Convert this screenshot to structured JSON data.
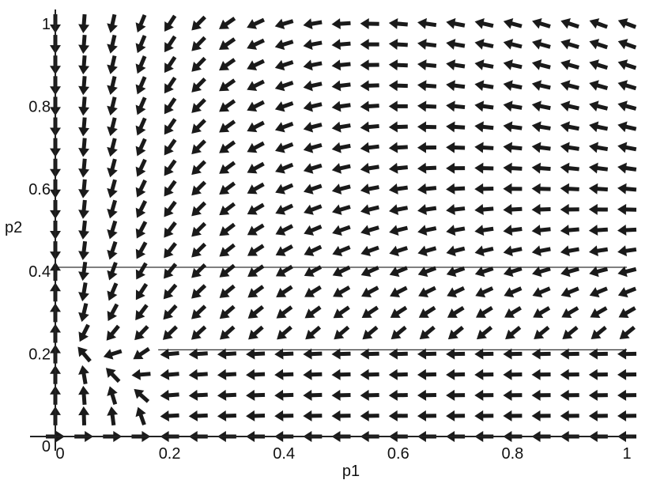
{
  "chart_data": {
    "type": "vector-field",
    "title": "",
    "xlabel": "p1",
    "ylabel": "p2",
    "xlim": [
      0,
      1
    ],
    "ylim": [
      0,
      1
    ],
    "x_ticks": [
      {
        "value": 0,
        "label": "0"
      },
      {
        "value": 0.2,
        "label": "0.2"
      },
      {
        "value": 0.4,
        "label": "0.4"
      },
      {
        "value": 0.6,
        "label": "0.6"
      },
      {
        "value": 0.8,
        "label": "0.8"
      },
      {
        "value": 1,
        "label": "1"
      }
    ],
    "y_ticks": [
      {
        "value": 0,
        "label": "0"
      },
      {
        "value": 0.2,
        "label": "0.2"
      },
      {
        "value": 0.4,
        "label": "0.4"
      },
      {
        "value": 0.6,
        "label": "0.6"
      },
      {
        "value": 0.8,
        "label": "0.8"
      },
      {
        "value": 1,
        "label": "1"
      }
    ],
    "grid_spacing": 0.05,
    "reference_lines": [
      {
        "orientation": "horizontal",
        "y": 0.41,
        "x_from": 0,
        "x_to": 1
      },
      {
        "orientation": "horizontal",
        "y": 0.21,
        "x_from": 0.18,
        "x_to": 1
      }
    ],
    "arrow_color": "#1a1a1a",
    "line_color": "#333333",
    "grid": false,
    "legend": "none"
  }
}
